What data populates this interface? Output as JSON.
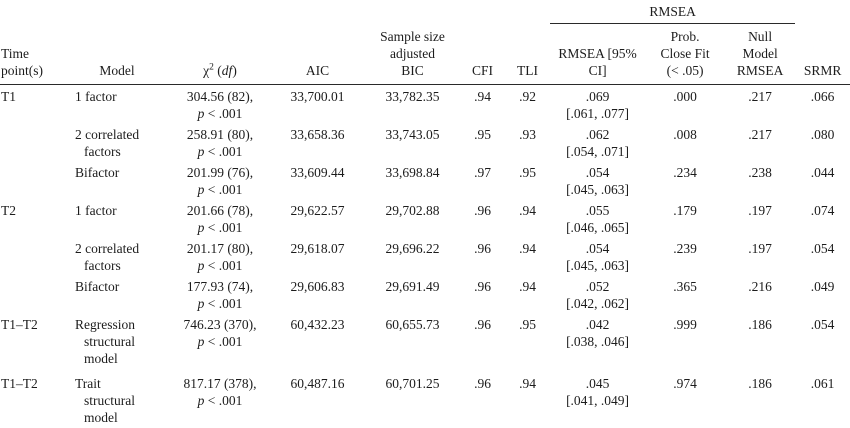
{
  "table": {
    "spanner": "RMSEA",
    "columns": {
      "time": "Time\npoint(s)",
      "model": "Model",
      "chi": {
        "sym": "χ",
        "sup": "2",
        "open": " (",
        "df": "df",
        "close": ")"
      },
      "aic": "AIC",
      "bic": "Sample size\nadjusted\nBIC",
      "cfi": "CFI",
      "tli": "TLI",
      "rmsea": "RMSEA [95%\nCI]",
      "prob_close": "Prob.\nClose Fit\n(< .05)",
      "null_model": "Null\nModel\nRMSEA",
      "srmr": "SRMR"
    },
    "rows": [
      {
        "time": "T1",
        "model_lines": [
          "1 factor"
        ],
        "chi2": "304.56 (82),",
        "p_italic": "p",
        "p_rest": " < .001",
        "aic": "33,700.01",
        "bic": "33,782.35",
        "cfi": ".94",
        "tli": ".92",
        "rmsea": ".069",
        "rmsea_ci": "[.061, .077]",
        "prob_close": ".000",
        "null_model": ".217",
        "srmr": ".066",
        "tall": false
      },
      {
        "time": "",
        "model_lines": [
          "2 correlated",
          "factors"
        ],
        "chi2": "258.91 (80),",
        "p_italic": "p",
        "p_rest": " < .001",
        "aic": "33,658.36",
        "bic": "33,743.05",
        "cfi": ".95",
        "tli": ".93",
        "rmsea": ".062",
        "rmsea_ci": "[.054, .071]",
        "prob_close": ".008",
        "null_model": ".217",
        "srmr": ".080",
        "tall": false
      },
      {
        "time": "",
        "model_lines": [
          "Bifactor"
        ],
        "chi2": "201.99 (76),",
        "p_italic": "p",
        "p_rest": " < .001",
        "aic": "33,609.44",
        "bic": "33,698.84",
        "cfi": ".97",
        "tli": ".95",
        "rmsea": ".054",
        "rmsea_ci": "[.045, .063]",
        "prob_close": ".234",
        "null_model": ".238",
        "srmr": ".044",
        "tall": false
      },
      {
        "time": "T2",
        "model_lines": [
          "1 factor"
        ],
        "chi2": "201.66 (78),",
        "p_italic": "p",
        "p_rest": " < .001",
        "aic": "29,622.57",
        "bic": "29,702.88",
        "cfi": ".96",
        "tli": ".94",
        "rmsea": ".055",
        "rmsea_ci": "[.046, .065]",
        "prob_close": ".179",
        "null_model": ".197",
        "srmr": ".074",
        "tall": false
      },
      {
        "time": "",
        "model_lines": [
          "2 correlated",
          "factors"
        ],
        "chi2": "201.17 (80),",
        "p_italic": "p",
        "p_rest": " < .001",
        "aic": "29,618.07",
        "bic": "29,696.22",
        "cfi": ".96",
        "tli": ".94",
        "rmsea": ".054",
        "rmsea_ci": "[.045, .063]",
        "prob_close": ".239",
        "null_model": ".197",
        "srmr": ".054",
        "tall": false
      },
      {
        "time": "",
        "model_lines": [
          "Bifactor"
        ],
        "chi2": "177.93 (74),",
        "p_italic": "p",
        "p_rest": " < .001",
        "aic": "29,606.83",
        "bic": "29,691.49",
        "cfi": ".96",
        "tli": ".94",
        "rmsea": ".052",
        "rmsea_ci": "[.042, .062]",
        "prob_close": ".365",
        "null_model": ".216",
        "srmr": ".049",
        "tall": false
      },
      {
        "time": "T1–T2",
        "model_lines": [
          "Regression",
          "structural",
          "model"
        ],
        "chi2": "746.23 (370),",
        "p_italic": "p",
        "p_rest": " < .001",
        "aic": "60,432.23",
        "bic": "60,655.73",
        "cfi": ".96",
        "tli": ".95",
        "rmsea": ".042",
        "rmsea_ci": "[.038, .046]",
        "prob_close": ".999",
        "null_model": ".186",
        "srmr": ".054",
        "tall": true
      },
      {
        "time": "T1–T2",
        "model_lines": [
          "Trait",
          "structural",
          "model"
        ],
        "chi2": "817.17 (378),",
        "p_italic": "p",
        "p_rest": " < .001",
        "aic": "60,487.16",
        "bic": "60,701.25",
        "cfi": ".96",
        "tli": ".94",
        "rmsea": ".045",
        "rmsea_ci": "[.041, .049]",
        "prob_close": ".974",
        "null_model": ".186",
        "srmr": ".061",
        "tall": true
      }
    ]
  }
}
